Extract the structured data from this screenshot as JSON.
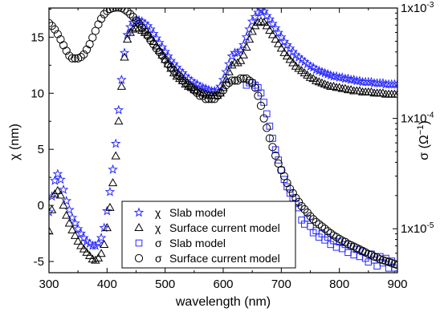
{
  "chart_data": {
    "type": "scatter",
    "xlabel": "wavelength (nm)",
    "ylabel_left": "χ (nm)",
    "ylabel_right": "σ (Ω",
    "ylabel_right_exp": "−1",
    "ylabel_right_close": ")",
    "xlim": [
      300,
      900
    ],
    "ylim_left": [
      -6,
      17.6
    ],
    "ylim_right": [
      4e-06,
      0.001
    ],
    "right_scale": "log",
    "x_ticks": [
      300,
      400,
      500,
      600,
      700,
      800,
      900
    ],
    "x_tick_labels": [
      "300",
      "400",
      "500",
      "600",
      "700",
      "800",
      "900"
    ],
    "y_left_ticks": [
      -5,
      0,
      5,
      10,
      15
    ],
    "y_left_tick_labels": [
      "-5",
      "0",
      "5",
      "10",
      "15"
    ],
    "y_right_ticks": [
      1e-05,
      0.0001,
      0.001
    ],
    "y_right_tick_label_base": [
      "1x10",
      "1x10",
      "1x10"
    ],
    "y_right_tick_label_exp": [
      "-5",
      "-4",
      "-3"
    ],
    "legend_placement": "bottom-center",
    "colors": {
      "blue": "#2a2aff",
      "black": "#000000"
    },
    "series": [
      {
        "name": "χ Slab model",
        "legend_symbol": "χ",
        "legend_label": "Slab model",
        "marker": "star",
        "color": "#2a2aff",
        "axis": "left",
        "x": [
          300,
          305,
          310,
          315,
          320,
          325,
          330,
          335,
          340,
          345,
          350,
          355,
          360,
          365,
          370,
          375,
          380,
          385,
          390,
          395,
          400,
          405,
          410,
          415,
          420,
          425,
          430,
          435,
          440,
          445,
          450,
          455,
          460,
          465,
          470,
          475,
          480,
          485,
          490,
          495,
          500,
          505,
          510,
          515,
          520,
          525,
          530,
          535,
          540,
          545,
          550,
          555,
          560,
          565,
          570,
          575,
          580,
          585,
          590,
          595,
          600,
          605,
          610,
          615,
          620,
          625,
          630,
          635,
          640,
          645,
          650,
          655,
          660,
          665,
          670,
          675,
          680,
          685,
          690,
          695,
          700,
          705,
          710,
          715,
          720,
          725,
          730,
          735,
          740,
          745,
          750,
          755,
          760,
          765,
          770,
          775,
          780,
          785,
          790,
          795,
          800,
          805,
          810,
          815,
          820,
          825,
          830,
          835,
          840,
          845,
          850,
          855,
          860,
          865,
          870,
          875,
          880,
          885,
          890,
          895,
          900
        ],
        "y": [
          -0.6,
          0.8,
          2.2,
          2.8,
          2.3,
          1.4,
          0.4,
          -0.4,
          -1.1,
          -1.6,
          -2.1,
          -2.5,
          -2.9,
          -3.2,
          -3.4,
          -3.6,
          -3.6,
          -3.4,
          -2.9,
          -2.0,
          -0.5,
          1.2,
          3.2,
          5.5,
          8.5,
          11.2,
          13.6,
          15.2,
          15.9,
          16.3,
          16.5,
          16.5,
          16.4,
          16.2,
          16.0,
          15.7,
          15.3,
          14.9,
          14.5,
          14.1,
          13.7,
          13.3,
          12.9,
          12.6,
          12.3,
          12.0,
          11.8,
          11.5,
          11.3,
          11.1,
          10.9,
          10.8,
          10.6,
          10.5,
          10.4,
          10.3,
          10.2,
          10.2,
          10.3,
          10.6,
          11.2,
          11.9,
          12.6,
          13.3,
          13.6,
          13.6,
          13.8,
          14.3,
          15.0,
          15.7,
          16.4,
          16.8,
          17.2,
          17.4,
          17.3,
          16.9,
          16.6,
          16.2,
          15.8,
          15.4,
          15.0,
          14.6,
          14.3,
          14.0,
          13.7,
          13.4,
          13.2,
          13.0,
          12.8,
          12.6,
          12.4,
          12.3,
          12.1,
          12.0,
          11.9,
          11.8,
          11.7,
          11.6,
          11.5,
          11.5,
          11.4,
          11.4,
          11.3,
          11.3,
          11.2,
          11.2,
          11.1,
          11.1,
          11.0,
          11.0,
          11.0,
          11.0,
          10.9,
          10.9,
          10.9,
          10.9,
          10.8,
          10.8,
          10.8,
          10.8,
          10.8
        ]
      },
      {
        "name": "χ Surface current model",
        "legend_symbol": "χ",
        "legend_label": "Surface current model",
        "marker": "triangle",
        "color": "#000000",
        "axis": "left",
        "x": [
          300,
          305,
          310,
          315,
          320,
          325,
          330,
          335,
          340,
          345,
          350,
          355,
          360,
          365,
          370,
          375,
          380,
          385,
          390,
          395,
          400,
          405,
          410,
          415,
          420,
          425,
          430,
          435,
          440,
          445,
          450,
          455,
          460,
          465,
          470,
          475,
          480,
          485,
          490,
          495,
          500,
          505,
          510,
          515,
          520,
          525,
          530,
          535,
          540,
          545,
          550,
          555,
          560,
          565,
          570,
          575,
          580,
          585,
          590,
          595,
          600,
          605,
          610,
          615,
          620,
          625,
          630,
          635,
          640,
          645,
          650,
          655,
          660,
          665,
          670,
          675,
          680,
          685,
          690,
          695,
          700,
          705,
          710,
          715,
          720,
          725,
          730,
          735,
          740,
          745,
          750,
          755,
          760,
          765,
          770,
          775,
          780,
          785,
          790,
          795,
          800,
          805,
          810,
          815,
          820,
          825,
          830,
          835,
          840,
          845,
          850,
          855,
          860,
          865,
          870,
          875,
          880,
          885,
          890,
          895,
          900
        ],
        "y": [
          -2.3,
          -0.4,
          1.0,
          1.3,
          0.9,
          0.0,
          -0.9,
          -1.6,
          -2.2,
          -2.7,
          -3.2,
          -3.6,
          -3.9,
          -4.2,
          -4.5,
          -4.8,
          -4.9,
          -4.7,
          -4.3,
          -3.5,
          -2.0,
          -0.2,
          2.0,
          4.4,
          7.5,
          10.6,
          13.2,
          14.8,
          15.4,
          15.7,
          15.8,
          15.8,
          15.6,
          15.4,
          15.2,
          14.9,
          14.6,
          14.2,
          13.8,
          13.4,
          13.0,
          12.6,
          12.2,
          11.8,
          11.5,
          11.3,
          11.1,
          10.8,
          10.6,
          10.5,
          10.3,
          10.2,
          10.1,
          10.0,
          9.9,
          9.8,
          9.8,
          9.8,
          9.8,
          10.0,
          10.5,
          11.2,
          11.9,
          12.5,
          12.7,
          12.7,
          12.9,
          13.4,
          14.1,
          14.8,
          15.5,
          16.0,
          16.3,
          16.4,
          16.3,
          16.0,
          15.6,
          15.2,
          14.8,
          14.4,
          14.0,
          13.6,
          13.3,
          13.0,
          12.7,
          12.4,
          12.2,
          12.0,
          11.8,
          11.6,
          11.4,
          11.3,
          11.1,
          11.0,
          10.9,
          10.8,
          10.7,
          10.6,
          10.6,
          10.5,
          10.5,
          10.4,
          10.4,
          10.3,
          10.3,
          10.2,
          10.2,
          10.2,
          10.1,
          10.1,
          10.1,
          10.1,
          10.0,
          10.0,
          10.0,
          10.0,
          9.9,
          9.9,
          9.9,
          9.9,
          9.9
        ]
      },
      {
        "name": "σ Slab model",
        "legend_symbol": "σ",
        "legend_label": "Slab model",
        "marker": "square",
        "color": "#2a2aff",
        "axis": "right",
        "x": [
          640,
          645,
          650,
          655,
          660,
          665,
          670,
          675,
          680,
          685,
          690,
          695,
          700,
          705,
          710,
          715,
          720,
          725,
          730,
          735,
          740,
          745,
          750,
          755,
          760,
          765,
          770,
          775,
          780,
          785,
          790,
          795,
          800,
          805,
          810,
          815,
          820,
          825,
          830,
          835,
          840,
          845,
          850,
          855,
          860,
          865,
          870,
          875,
          880,
          885,
          890,
          895,
          900
        ],
        "y": [
          0.0002,
          0.00021,
          0.00021,
          0.0002,
          0.00019,
          0.00017,
          0.00014,
          0.00011,
          8.5e-05,
          6.6e-05,
          5.2e-05,
          4.2e-05,
          3.4e-05,
          2.8e-05,
          2.4e-05,
          2.1e-05,
          1.9e-05,
          1.7e-05,
          1.55e-05,
          1.2e-05,
          1.1e-05,
          1.25e-05,
          1.05e-05,
          9.2e-06,
          9.6e-06,
          8.4e-06,
          9e-06,
          7.9e-06,
          8.4e-06,
          7.2e-06,
          7.8e-06,
          6.8e-06,
          7.6e-06,
          6.6e-06,
          7.2e-06,
          6.1e-06,
          6.9e-06,
          5.8e-06,
          6.5e-06,
          5.6e-06,
          6.2e-06,
          5.4e-06,
          5e-06,
          5.9e-06,
          5.2e-06,
          4.6e-06,
          5.6e-06,
          4.9e-06,
          5.4e-06,
          4.4e-06,
          5.1e-06,
          4.4e-06,
          3.9e-06
        ]
      },
      {
        "name": "σ Surface current model",
        "legend_symbol": "σ",
        "legend_label": "Surface current model",
        "marker": "circle",
        "color": "#000000",
        "axis": "right",
        "x": [
          300,
          305,
          310,
          315,
          320,
          325,
          330,
          335,
          340,
          345,
          350,
          355,
          360,
          365,
          370,
          375,
          380,
          385,
          390,
          395,
          400,
          405,
          410,
          415,
          420,
          425,
          430,
          435,
          440,
          445,
          450,
          455,
          460,
          465,
          470,
          475,
          480,
          485,
          490,
          495,
          500,
          505,
          510,
          515,
          520,
          525,
          530,
          535,
          540,
          545,
          550,
          555,
          560,
          565,
          570,
          575,
          580,
          585,
          590,
          595,
          600,
          605,
          610,
          615,
          620,
          625,
          630,
          635,
          640,
          645,
          650,
          655,
          660,
          665,
          670,
          675,
          680,
          685,
          690,
          695,
          700,
          705,
          710,
          715,
          720,
          725,
          730,
          735,
          740,
          745,
          750,
          755,
          760,
          765,
          770,
          775,
          780,
          785,
          790,
          795,
          800,
          805,
          810,
          815,
          820,
          825,
          830,
          835,
          840,
          845,
          850,
          855,
          860,
          865,
          870,
          875,
          880,
          885,
          890,
          895,
          900
        ],
        "y": [
          0.00073,
          0.00069,
          0.00064,
          0.00058,
          0.00052,
          0.00046,
          0.00041,
          0.00037,
          0.00035,
          0.00035,
          0.00035,
          0.00036,
          0.00038,
          0.00042,
          0.00047,
          0.00054,
          0.00062,
          0.00071,
          0.0008,
          0.00088,
          0.00094,
          0.00098,
          0.001,
          0.00101,
          0.00101,
          0.001,
          0.00097,
          0.00093,
          0.00088,
          0.00083,
          0.00077,
          0.00072,
          0.00066,
          0.00061,
          0.00056,
          0.00051,
          0.00047,
          0.00043,
          0.0004,
          0.00037,
          0.00034,
          0.00031,
          0.00029,
          0.00027,
          0.00025,
          0.00024,
          0.00022,
          0.00021,
          0.0002,
          0.00019,
          0.00018,
          0.00017,
          0.00016,
          0.00016,
          0.00015,
          0.00015,
          0.00015,
          0.00015,
          0.00016,
          0.00017,
          0.00018,
          0.0002,
          0.00021,
          0.00022,
          0.00022,
          0.00022,
          0.00023,
          0.00023,
          0.00023,
          0.00022,
          0.00021,
          0.00019,
          0.00016,
          0.00013,
          0.0001,
          8.2e-05,
          6.6e-05,
          5.5e-05,
          4.6e-05,
          3.9e-05,
          3.4e-05,
          3e-05,
          2.6e-05,
          2.3e-05,
          2.1e-05,
          1.9e-05,
          1.75e-05,
          1.6e-05,
          1.5e-05,
          1.4e-05,
          1.3e-05,
          1.22e-05,
          1.15e-05,
          1.1e-05,
          1.05e-05,
          1e-05,
          9.5e-06,
          9.1e-06,
          8.7e-06,
          8.4e-06,
          8.1e-06,
          7.8e-06,
          7.6e-06,
          7.3e-06,
          7.1e-06,
          6.9e-06,
          6.7e-06,
          6.5e-06,
          6.3e-06,
          6.1e-06,
          5.9e-06,
          5.8e-06,
          5.6e-06,
          5.5e-06,
          5.3e-06,
          5.2e-06,
          5.1e-06,
          5e-06,
          4.9e-06,
          4.8e-06,
          4.7e-06
        ]
      }
    ]
  }
}
